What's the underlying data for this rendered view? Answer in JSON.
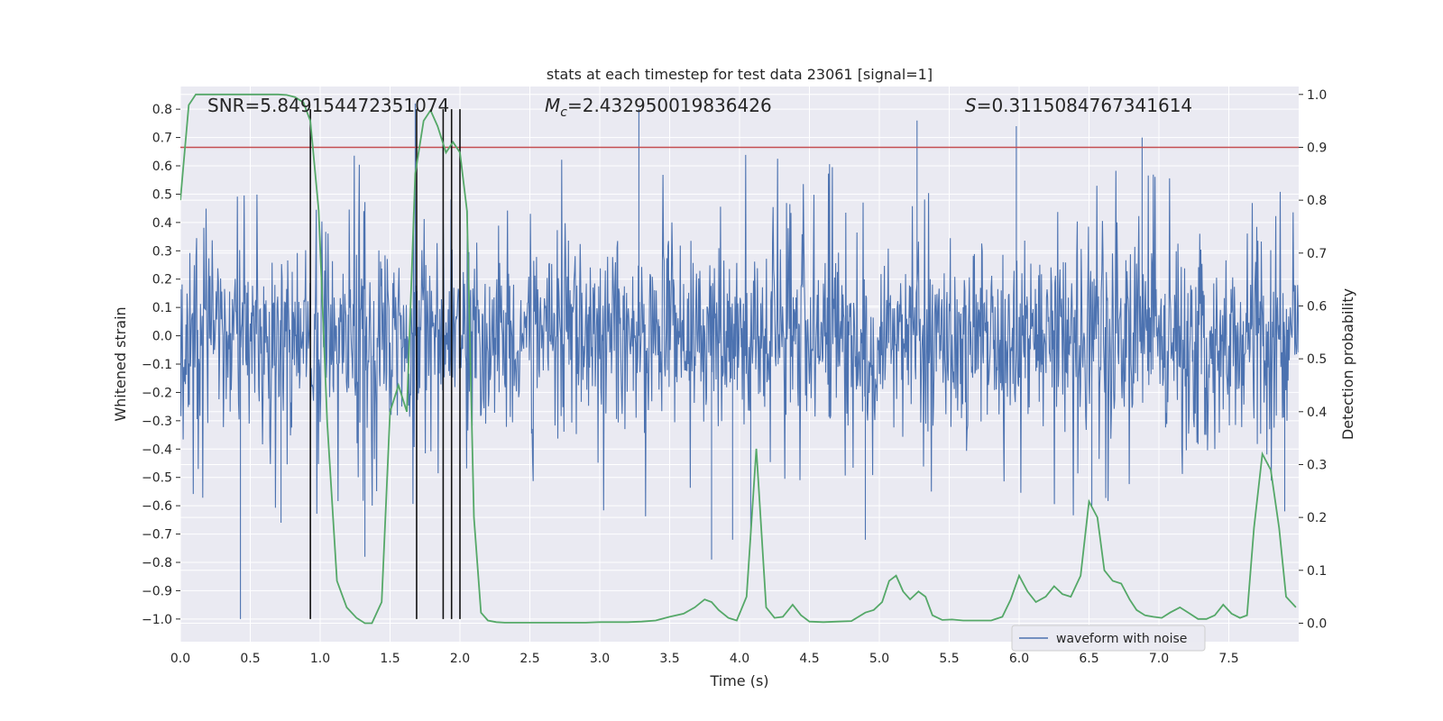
{
  "chart_data": {
    "type": "line",
    "title": "stats at each timestep for test data 23061 [signal=1]",
    "xlabel": "Time (s)",
    "ylabel": "Whitened strain",
    "y2label": "Detection probability",
    "xlim": [
      0.0,
      8.0
    ],
    "ylim": [
      -1.08,
      0.88
    ],
    "y2lim": [
      -0.035,
      1.015
    ],
    "xticks": [
      0.0,
      0.5,
      1.0,
      1.5,
      2.0,
      2.5,
      3.0,
      3.5,
      4.0,
      4.5,
      5.0,
      5.5,
      6.0,
      6.5,
      7.0,
      7.5
    ],
    "xtick_labels": [
      "0.0",
      "0.5",
      "1.0",
      "1.5",
      "2.0",
      "2.5",
      "3.0",
      "3.5",
      "4.0",
      "4.5",
      "5.0",
      "5.5",
      "6.0",
      "6.5",
      "7.0",
      "7.5"
    ],
    "yticks": [
      0.8,
      0.7,
      0.6,
      0.5,
      0.4,
      0.3,
      0.2,
      0.1,
      0.0,
      -0.1,
      -0.2,
      -0.3,
      -0.4,
      -0.5,
      -0.6,
      -0.7,
      -0.8,
      -0.9,
      -1.0
    ],
    "ytick_labels": [
      "0.8",
      "0.7",
      "0.6",
      "0.5",
      "0.4",
      "0.3",
      "0.2",
      "0.1",
      "0.0",
      "−0.1",
      "−0.2",
      "−0.3",
      "−0.4",
      "−0.5",
      "−0.6",
      "−0.7",
      "−0.8",
      "−0.9",
      "−1.0"
    ],
    "y2ticks": [
      1.0,
      0.9,
      0.8,
      0.7,
      0.6,
      0.5,
      0.4,
      0.3,
      0.2,
      0.1,
      0.0
    ],
    "y2tick_labels": [
      "1.0",
      "0.9",
      "0.8",
      "0.7",
      "0.6",
      "0.5",
      "0.4",
      "0.3",
      "0.2",
      "0.1",
      "0.0"
    ],
    "grid": true,
    "annotations": {
      "snr": "SNR=5.849154472351074",
      "mc_symbol": "M",
      "mc_sub": "c",
      "mc_value": "=2.432950019836426",
      "s_symbol": "S",
      "s_value": "=0.3115084767341614"
    },
    "threshold_probability": 0.9,
    "event_markers_x": [
      0.93,
      1.69,
      1.88,
      1.94,
      2.0
    ],
    "waveform": {
      "name": "waveform with noise",
      "color": "#4c72b0",
      "sample_spacing": 0.004,
      "typical_amplitude": 0.27,
      "notable_spikes": [
        {
          "x": 0.43,
          "y": -1.0
        },
        {
          "x": 0.72,
          "y": -0.66
        },
        {
          "x": 1.32,
          "y": -0.78
        },
        {
          "x": 1.68,
          "y": 0.82
        },
        {
          "x": 1.88,
          "y": -0.72
        },
        {
          "x": 3.28,
          "y": 0.8
        },
        {
          "x": 3.8,
          "y": -0.79
        },
        {
          "x": 3.95,
          "y": -0.72
        },
        {
          "x": 4.08,
          "y": -0.72
        },
        {
          "x": 4.9,
          "y": -0.72
        },
        {
          "x": 5.27,
          "y": 0.76
        },
        {
          "x": 5.98,
          "y": 0.74
        },
        {
          "x": 6.52,
          "y": -0.6
        },
        {
          "x": 6.88,
          "y": 0.7
        },
        {
          "x": 7.9,
          "y": -0.62
        }
      ]
    },
    "probability": {
      "name": "detection probability",
      "color": "#55a868",
      "x": [
        0.0,
        0.06,
        0.11,
        0.2,
        0.3,
        0.4,
        0.5,
        0.6,
        0.7,
        0.76,
        0.82,
        0.88,
        0.93,
        0.99,
        1.05,
        1.12,
        1.19,
        1.26,
        1.32,
        1.37,
        1.44,
        1.5,
        1.56,
        1.62,
        1.68,
        1.74,
        1.79,
        1.84,
        1.9,
        1.95,
        2.0,
        2.05,
        2.1,
        2.15,
        2.2,
        2.26,
        2.32,
        2.4,
        2.5,
        2.6,
        2.7,
        2.8,
        2.9,
        3.0,
        3.1,
        3.2,
        3.3,
        3.4,
        3.5,
        3.6,
        3.68,
        3.75,
        3.8,
        3.85,
        3.92,
        3.98,
        4.05,
        4.12,
        4.19,
        4.25,
        4.31,
        4.38,
        4.44,
        4.5,
        4.6,
        4.7,
        4.8,
        4.9,
        4.96,
        5.02,
        5.07,
        5.12,
        5.17,
        5.22,
        5.28,
        5.33,
        5.38,
        5.45,
        5.52,
        5.6,
        5.7,
        5.8,
        5.88,
        5.94,
        6.0,
        6.06,
        6.12,
        6.19,
        6.25,
        6.31,
        6.37,
        6.44,
        6.5,
        6.56,
        6.61,
        6.67,
        6.73,
        6.79,
        6.84,
        6.9,
        6.96,
        7.02,
        7.08,
        7.15,
        7.21,
        7.28,
        7.34,
        7.4,
        7.46,
        7.52,
        7.58,
        7.63,
        7.68,
        7.74,
        7.8,
        7.86,
        7.91,
        7.98
      ],
      "y": [
        0.8,
        0.98,
        1.0,
        1.0,
        1.0,
        1.0,
        1.0,
        1.0,
        1.0,
        0.999,
        0.995,
        0.985,
        0.95,
        0.78,
        0.38,
        0.08,
        0.03,
        0.01,
        0.0,
        0.0,
        0.04,
        0.4,
        0.45,
        0.4,
        0.85,
        0.95,
        0.97,
        0.94,
        0.89,
        0.91,
        0.89,
        0.78,
        0.2,
        0.02,
        0.005,
        0.002,
        0.001,
        0.001,
        0.001,
        0.001,
        0.001,
        0.001,
        0.001,
        0.002,
        0.002,
        0.002,
        0.003,
        0.005,
        0.012,
        0.018,
        0.03,
        0.045,
        0.04,
        0.025,
        0.01,
        0.005,
        0.05,
        0.33,
        0.03,
        0.01,
        0.012,
        0.035,
        0.015,
        0.003,
        0.002,
        0.003,
        0.004,
        0.02,
        0.025,
        0.04,
        0.08,
        0.09,
        0.06,
        0.045,
        0.06,
        0.05,
        0.015,
        0.006,
        0.007,
        0.005,
        0.005,
        0.005,
        0.012,
        0.045,
        0.09,
        0.06,
        0.04,
        0.05,
        0.07,
        0.055,
        0.05,
        0.09,
        0.23,
        0.2,
        0.1,
        0.08,
        0.075,
        0.045,
        0.025,
        0.015,
        0.012,
        0.01,
        0.02,
        0.03,
        0.02,
        0.008,
        0.008,
        0.015,
        0.035,
        0.018,
        0.01,
        0.015,
        0.18,
        0.32,
        0.29,
        0.18,
        0.05,
        0.03
      ]
    },
    "threshold_line": {
      "color": "#c44e52"
    },
    "marker_color": "#111111",
    "legend": {
      "label": "waveform with noise",
      "location": "lower right"
    }
  }
}
